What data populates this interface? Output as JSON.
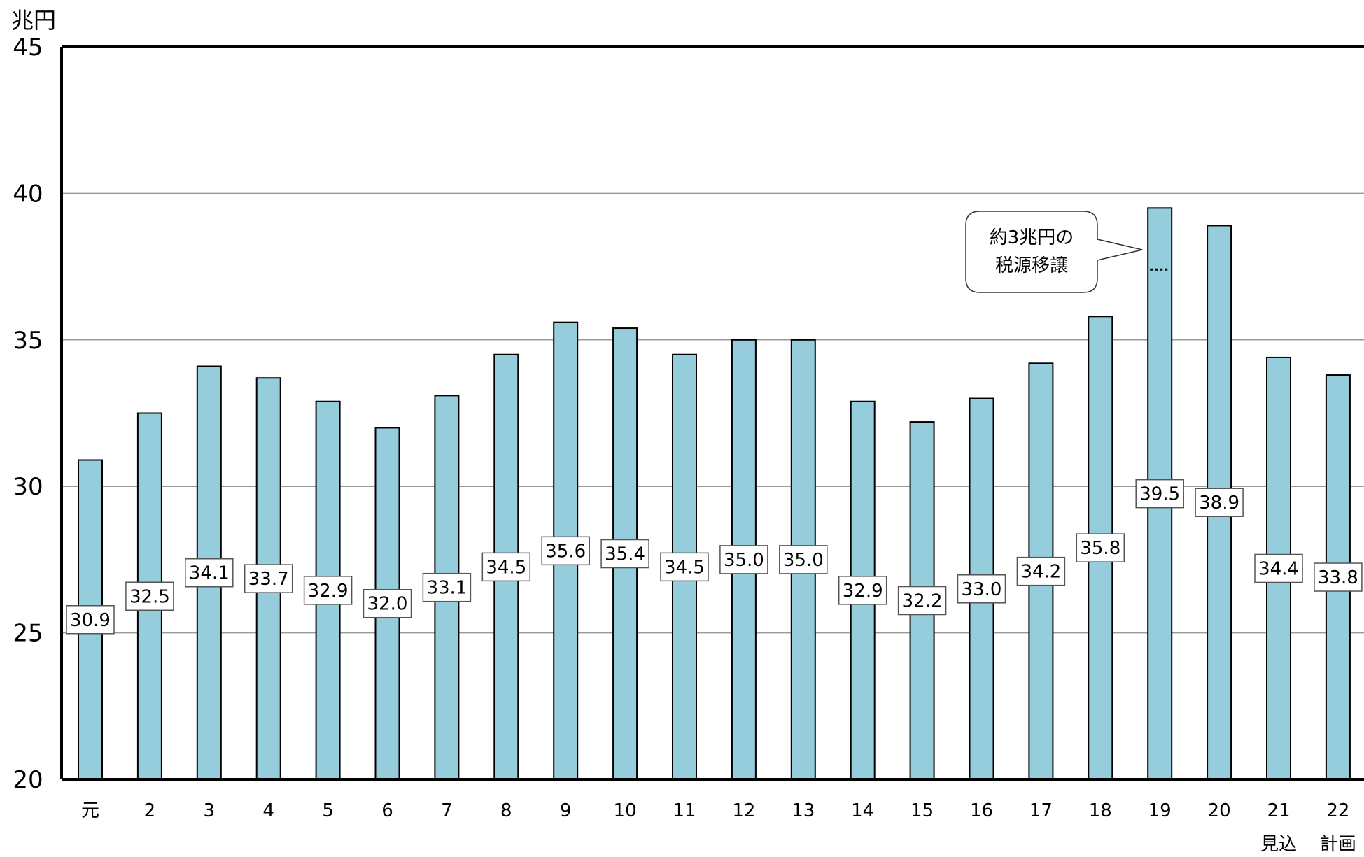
{
  "chart_data": {
    "type": "bar",
    "unit_label": "兆円",
    "ylim": [
      20,
      45
    ],
    "yticks": [
      20,
      25,
      30,
      35,
      40,
      45
    ],
    "grid": true,
    "categories": [
      "元",
      "2",
      "3",
      "4",
      "5",
      "6",
      "7",
      "8",
      "9",
      "10",
      "11",
      "12",
      "13",
      "14",
      "15",
      "16",
      "17",
      "18",
      "19",
      "20",
      "21",
      "22"
    ],
    "category_sublabels": {
      "21": "見込",
      "22": "計画"
    },
    "values": [
      30.9,
      32.5,
      34.1,
      33.7,
      32.9,
      32.0,
      33.1,
      34.5,
      35.6,
      35.4,
      34.5,
      35.0,
      35.0,
      32.9,
      32.2,
      33.0,
      34.2,
      35.8,
      39.5,
      38.9,
      34.4,
      33.8
    ],
    "value_labels": [
      "30.9",
      "32.5",
      "34.1",
      "33.7",
      "32.9",
      "32.0",
      "33.1",
      "34.5",
      "35.6",
      "35.4",
      "34.5",
      "35.0",
      "35.0",
      "32.9",
      "32.2",
      "33.0",
      "34.2",
      "35.8",
      "39.5",
      "38.9",
      "34.4",
      "33.8"
    ],
    "annotation": {
      "category": "19",
      "lines": [
        "約3兆円の",
        "税源移譲"
      ],
      "marker_value": 37.4
    },
    "colors": {
      "bar_fill": "#96cddc",
      "bar_stroke": "#000000",
      "grid": "#999999",
      "axis": "#000000"
    }
  }
}
